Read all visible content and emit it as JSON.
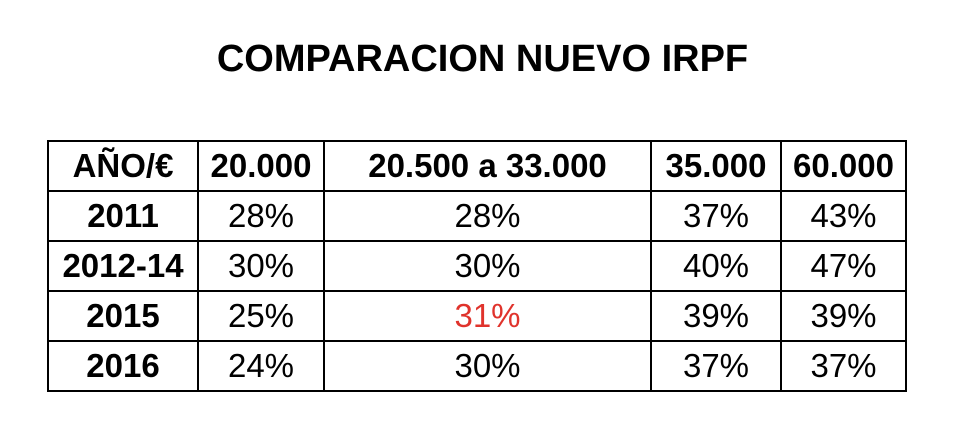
{
  "title": "COMPARACION NUEVO IRPF",
  "colors": {
    "text": "#000000",
    "highlight": "#e0332c",
    "border": "#000000",
    "background": "#ffffff"
  },
  "chart_data": {
    "type": "table",
    "title": "COMPARACION NUEVO IRPF",
    "columns": [
      "AÑO/€",
      "20.000",
      "20.500 a 33.000",
      "35.000",
      "60.000"
    ],
    "rows": [
      {
        "year": "2011",
        "values": [
          "28%",
          "28%",
          "37%",
          "43%"
        ]
      },
      {
        "year": "2012-14",
        "values": [
          "30%",
          "30%",
          "40%",
          "47%"
        ]
      },
      {
        "year": "2015",
        "values": [
          "25%",
          "31%",
          "39%",
          "39%"
        ],
        "highlight_index": 1
      },
      {
        "year": "2016",
        "values": [
          "24%",
          "30%",
          "37%",
          "37%"
        ]
      }
    ]
  }
}
